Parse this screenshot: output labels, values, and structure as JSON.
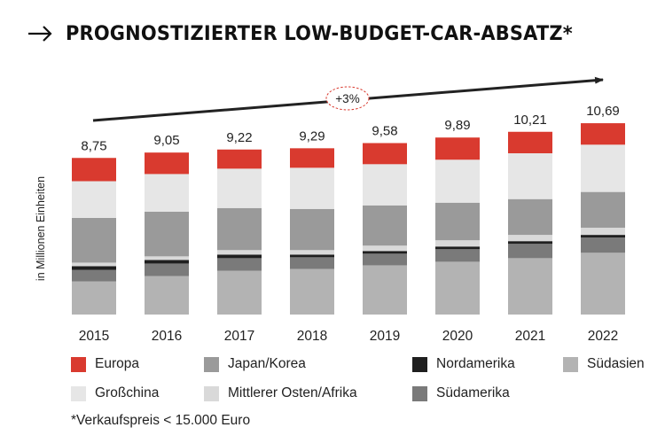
{
  "header": {
    "arrow_icon": "right-arrow-icon",
    "title": "PROGNOSTIZIERTER LOW-BUDGET-CAR-ABSATZ*"
  },
  "chart_data": {
    "type": "bar",
    "stacked": true,
    "title": "PROGNOSTIZIERTER LOW-BUDGET-CAR-ABSATZ*",
    "ylabel": "in Millionen Einheiten",
    "xlabel": "",
    "ylim": [
      0,
      12
    ],
    "grid": false,
    "categories": [
      "2015",
      "2016",
      "2017",
      "2018",
      "2019",
      "2020",
      "2021",
      "2022"
    ],
    "totals": [
      8.75,
      9.05,
      9.22,
      9.29,
      9.58,
      9.89,
      10.21,
      10.69
    ],
    "total_labels": [
      "8,75",
      "9,05",
      "9,22",
      "9,29",
      "9,58",
      "9,89",
      "10,21",
      "10,69"
    ],
    "growth_label": "+3%",
    "series": [
      {
        "name": "Südasien",
        "color": "#b3b3b3",
        "values": [
          1.85,
          2.15,
          2.45,
          2.55,
          2.75,
          2.95,
          3.15,
          3.45
        ]
      },
      {
        "name": "Südamerika",
        "color": "#7a7a7a",
        "values": [
          0.65,
          0.7,
          0.7,
          0.65,
          0.65,
          0.7,
          0.8,
          0.85
        ]
      },
      {
        "name": "Nordamerika",
        "color": "#1f1f1f",
        "values": [
          0.2,
          0.2,
          0.2,
          0.15,
          0.15,
          0.15,
          0.15,
          0.15
        ]
      },
      {
        "name": "Mittlerer Osten/Afrika",
        "color": "#d9d9d9",
        "values": [
          0.2,
          0.2,
          0.25,
          0.25,
          0.3,
          0.35,
          0.35,
          0.4
        ]
      },
      {
        "name": "Japan/Korea",
        "color": "#9a9a9a",
        "values": [
          2.5,
          2.5,
          2.35,
          2.3,
          2.25,
          2.1,
          2.0,
          2.0
        ]
      },
      {
        "name": "Großchina",
        "color": "#e6e6e6",
        "values": [
          2.05,
          2.1,
          2.2,
          2.3,
          2.3,
          2.4,
          2.56,
          2.64
        ]
      },
      {
        "name": "Europa",
        "color": "#d93a2f",
        "values": [
          1.3,
          1.2,
          1.07,
          1.09,
          1.18,
          1.24,
          1.2,
          1.2
        ]
      }
    ],
    "legend": [
      {
        "name": "Europa",
        "color": "#d93a2f"
      },
      {
        "name": "Japan/Korea",
        "color": "#9a9a9a"
      },
      {
        "name": "Nordamerika",
        "color": "#1f1f1f"
      },
      {
        "name": "Südasien",
        "color": "#b3b3b3"
      },
      {
        "name": "Großchina",
        "color": "#e6e6e6"
      },
      {
        "name": "Mittlerer Osten/Afrika",
        "color": "#d9d9d9"
      },
      {
        "name": "Südamerika",
        "color": "#7a7a7a"
      }
    ]
  },
  "footnote": "*Verkaufspreis < 15.000 Euro"
}
